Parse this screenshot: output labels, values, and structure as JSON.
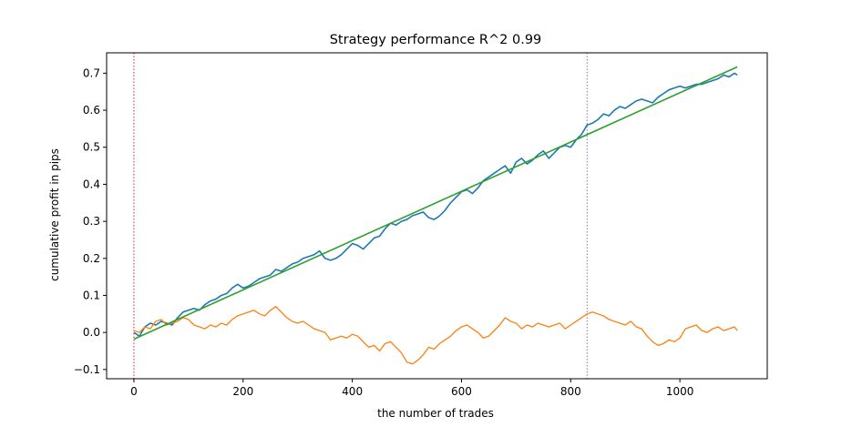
{
  "chart_data": {
    "type": "line",
    "title": "Strategy performance R^2 0.99",
    "xlabel": "the number of trades",
    "ylabel": "cumulative profit in pips",
    "xlim": [
      -50,
      1160
    ],
    "ylim": [
      -0.125,
      0.755
    ],
    "xticks": [
      0,
      200,
      400,
      600,
      800,
      1000
    ],
    "yticks": [
      -0.1,
      0.0,
      0.1,
      0.2,
      0.3,
      0.4,
      0.5,
      0.6,
      0.7
    ],
    "xtick_labels": [
      "0",
      "200",
      "400",
      "600",
      "800",
      "1000"
    ],
    "ytick_labels": [
      "−0.1",
      "0.0",
      "0.1",
      "0.2",
      "0.3",
      "0.4",
      "0.5",
      "0.6",
      "0.7"
    ],
    "grid": false,
    "legend": "none",
    "vlines": [
      {
        "x": 0,
        "color": "#d62728",
        "style": "dotted"
      },
      {
        "x": 830,
        "color": "#9467bd",
        "style": "dotted"
      }
    ],
    "series": [
      {
        "color": "#1f77b4",
        "x": [
          0,
          10,
          20,
          30,
          40,
          50,
          60,
          70,
          80,
          90,
          100,
          110,
          120,
          130,
          140,
          150,
          160,
          170,
          180,
          190,
          200,
          210,
          220,
          230,
          240,
          250,
          260,
          270,
          280,
          290,
          300,
          310,
          320,
          330,
          340,
          350,
          360,
          370,
          380,
          390,
          400,
          410,
          420,
          430,
          440,
          450,
          460,
          470,
          480,
          490,
          500,
          510,
          520,
          530,
          540,
          550,
          560,
          570,
          580,
          590,
          600,
          610,
          620,
          630,
          640,
          650,
          660,
          670,
          680,
          690,
          700,
          710,
          720,
          730,
          740,
          750,
          760,
          770,
          780,
          790,
          800,
          810,
          820,
          830,
          840,
          850,
          860,
          870,
          880,
          890,
          900,
          910,
          920,
          930,
          940,
          950,
          960,
          970,
          980,
          990,
          1000,
          1010,
          1020,
          1030,
          1040,
          1050,
          1060,
          1070,
          1080,
          1090,
          1100,
          1105
        ],
        "y": [
          0.0,
          -0.01,
          0.015,
          0.025,
          0.02,
          0.03,
          0.025,
          0.02,
          0.04,
          0.055,
          0.06,
          0.065,
          0.06,
          0.075,
          0.085,
          0.09,
          0.1,
          0.105,
          0.12,
          0.13,
          0.12,
          0.125,
          0.135,
          0.145,
          0.15,
          0.155,
          0.17,
          0.165,
          0.175,
          0.185,
          0.19,
          0.2,
          0.205,
          0.21,
          0.22,
          0.2,
          0.195,
          0.2,
          0.21,
          0.225,
          0.24,
          0.235,
          0.225,
          0.24,
          0.255,
          0.26,
          0.28,
          0.295,
          0.29,
          0.3,
          0.305,
          0.315,
          0.32,
          0.325,
          0.31,
          0.305,
          0.315,
          0.33,
          0.35,
          0.365,
          0.38,
          0.385,
          0.375,
          0.39,
          0.41,
          0.42,
          0.43,
          0.44,
          0.45,
          0.43,
          0.46,
          0.47,
          0.455,
          0.465,
          0.48,
          0.49,
          0.47,
          0.485,
          0.5,
          0.505,
          0.5,
          0.52,
          0.535,
          0.56,
          0.565,
          0.575,
          0.59,
          0.585,
          0.6,
          0.61,
          0.605,
          0.615,
          0.625,
          0.63,
          0.625,
          0.62,
          0.635,
          0.645,
          0.655,
          0.66,
          0.665,
          0.66,
          0.665,
          0.67,
          0.67,
          0.675,
          0.68,
          0.685,
          0.695,
          0.69,
          0.7,
          0.695
        ]
      },
      {
        "color": "#ff7f0e",
        "x": [
          0,
          10,
          20,
          30,
          40,
          50,
          60,
          70,
          80,
          90,
          100,
          110,
          120,
          130,
          140,
          150,
          160,
          170,
          180,
          190,
          200,
          210,
          220,
          230,
          240,
          250,
          260,
          270,
          280,
          290,
          300,
          310,
          320,
          330,
          340,
          350,
          360,
          370,
          380,
          390,
          400,
          410,
          420,
          430,
          440,
          450,
          460,
          470,
          480,
          490,
          500,
          510,
          520,
          530,
          540,
          550,
          560,
          570,
          580,
          590,
          600,
          610,
          620,
          630,
          640,
          650,
          660,
          670,
          680,
          690,
          700,
          710,
          720,
          730,
          740,
          750,
          760,
          770,
          780,
          790,
          800,
          810,
          820,
          830,
          840,
          850,
          860,
          870,
          880,
          890,
          900,
          910,
          920,
          930,
          940,
          950,
          960,
          970,
          980,
          990,
          1000,
          1010,
          1020,
          1030,
          1040,
          1050,
          1060,
          1070,
          1080,
          1090,
          1100,
          1105
        ],
        "y": [
          0.005,
          0.0,
          0.015,
          0.01,
          0.03,
          0.035,
          0.02,
          0.025,
          0.03,
          0.04,
          0.035,
          0.02,
          0.015,
          0.01,
          0.02,
          0.015,
          0.025,
          0.02,
          0.035,
          0.045,
          0.05,
          0.055,
          0.06,
          0.05,
          0.045,
          0.06,
          0.07,
          0.055,
          0.04,
          0.03,
          0.025,
          0.03,
          0.02,
          0.01,
          0.005,
          0.0,
          -0.02,
          -0.015,
          -0.01,
          -0.015,
          -0.005,
          -0.01,
          -0.025,
          -0.04,
          -0.035,
          -0.05,
          -0.03,
          -0.025,
          -0.04,
          -0.055,
          -0.08,
          -0.085,
          -0.075,
          -0.06,
          -0.04,
          -0.045,
          -0.03,
          -0.02,
          -0.01,
          0.005,
          0.015,
          0.02,
          0.01,
          0.0,
          -0.015,
          -0.01,
          0.005,
          0.02,
          0.04,
          0.03,
          0.025,
          0.01,
          0.02,
          0.015,
          0.025,
          0.02,
          0.015,
          0.02,
          0.025,
          0.01,
          0.02,
          0.03,
          0.04,
          0.05,
          0.055,
          0.05,
          0.045,
          0.035,
          0.03,
          0.025,
          0.02,
          0.03,
          0.015,
          0.01,
          -0.01,
          -0.025,
          -0.035,
          -0.03,
          -0.02,
          -0.025,
          -0.015,
          0.01,
          0.015,
          0.02,
          0.005,
          0.0,
          0.01,
          0.015,
          0.005,
          0.01,
          0.015,
          0.005
        ]
      },
      {
        "color": "#2ca02c",
        "x": [
          0,
          1105
        ],
        "y": [
          -0.018,
          0.717
        ]
      }
    ]
  }
}
